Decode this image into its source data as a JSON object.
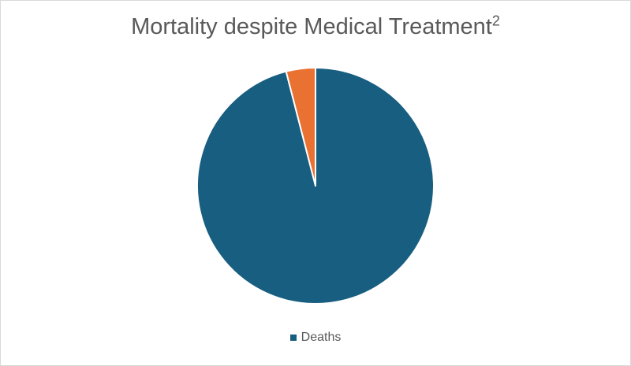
{
  "chart_data": {
    "type": "pie",
    "title": "Mortality despite Medical Treatment",
    "title_superscript": "2",
    "start_angle_deg": 0,
    "slices": [
      {
        "name": "Deaths",
        "value": 96,
        "color": "#175E80",
        "in_legend": true
      },
      {
        "name": "",
        "value": 4,
        "color": "#E97132",
        "in_legend": false
      }
    ],
    "legend_position": "bottom",
    "slice_border_color": "#ffffff"
  }
}
